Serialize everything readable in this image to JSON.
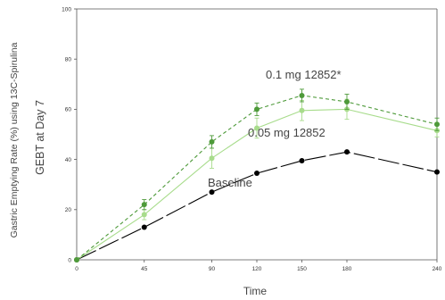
{
  "chart_data": {
    "type": "line",
    "title": "",
    "xlabel": "Time",
    "ylabel_outer": "Gastric Emptying Rate (%) using 13C-Spirulina",
    "ylabel_inner": "GEBT at Day 7",
    "xlim": [
      0,
      240
    ],
    "ylim": [
      0,
      100
    ],
    "x_ticks": [
      0,
      45,
      90,
      120,
      150,
      180,
      240
    ],
    "y_ticks": [
      0,
      20,
      40,
      60,
      80,
      100
    ],
    "grid": false,
    "legend": "none",
    "x": [
      0,
      45,
      90,
      120,
      150,
      180,
      240
    ],
    "series": [
      {
        "name": "Baseline",
        "color": "#000000",
        "line_style": "long-dash",
        "values": [
          0,
          13,
          27,
          34.5,
          39.5,
          43,
          35
        ],
        "errors": []
      },
      {
        "name": "0.05 mg 12852",
        "color": "#a8dc8c",
        "line_style": "solid",
        "values": [
          0,
          18,
          40.5,
          52.5,
          59.5,
          60,
          51.5
        ],
        "errors": [
          0,
          2,
          4,
          4,
          4,
          4,
          2.5
        ]
      },
      {
        "name": "0.1 mg 12852*",
        "color": "#4e9a3a",
        "line_style": "dashed",
        "values": [
          0,
          22,
          47,
          60,
          65.5,
          63,
          54
        ],
        "errors": [
          0,
          2,
          2.5,
          2.5,
          2.5,
          3,
          2.5
        ]
      }
    ],
    "annotations": [
      {
        "text": "0.1 mg 12852*",
        "series": "0.1 mg 12852*"
      },
      {
        "text": "0.05 mg 12852",
        "series": "0.05 mg 12852"
      },
      {
        "text": "Baseline",
        "series": "Baseline"
      }
    ]
  }
}
